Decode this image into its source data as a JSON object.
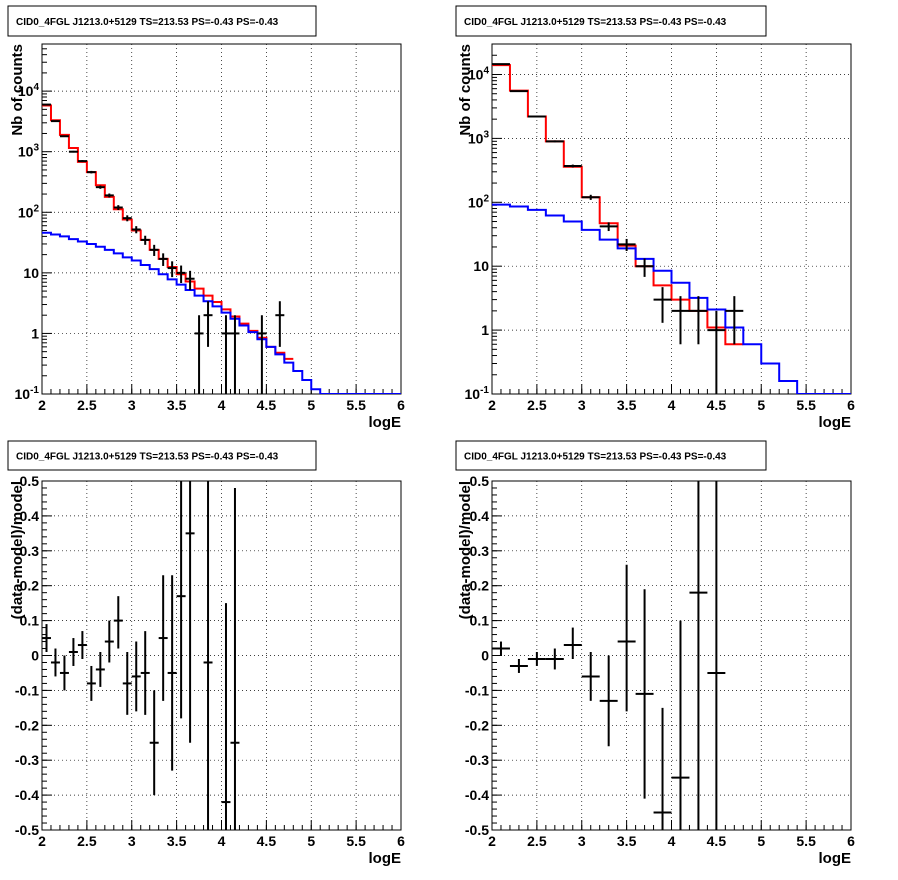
{
  "colors": {
    "total_model": "#ff0000",
    "background_model": "#0000ff",
    "data": "#000000",
    "grid": "#000000"
  },
  "chart_data": [
    {
      "type": "line",
      "title": "CID0_4FGL J1213.0+5129 TS=213.53 PS=-0.43 PS=-0.43",
      "xlabel": "logE",
      "ylabel": "Nb of counts",
      "xlim": [
        2,
        6
      ],
      "ylim": [
        0.1,
        60000
      ],
      "yscale": "log",
      "grid": true,
      "x_ticks": [
        "2",
        "2.5",
        "3",
        "3.5",
        "4",
        "4.5",
        "5",
        "5.5",
        "6"
      ],
      "y_ticks": [
        "10^-1",
        "1",
        "10",
        "10^2",
        "10^3",
        "10^4"
      ],
      "bin_width": 0.1,
      "series": [
        {
          "key": "total",
          "style": "step",
          "color": "#ff0000",
          "x": [
            2.0,
            2.1,
            2.2,
            2.3,
            2.4,
            2.5,
            2.6,
            2.7,
            2.8,
            2.9,
            3.0,
            3.1,
            3.2,
            3.3,
            3.4,
            3.5,
            3.6,
            3.7,
            3.8,
            3.9,
            4.0,
            4.1,
            4.2,
            4.3,
            4.4,
            4.5,
            4.6,
            4.7
          ],
          "values": [
            5800,
            3300,
            1900,
            1150,
            680,
            460,
            280,
            180,
            112,
            76,
            50,
            35,
            24,
            17,
            12.5,
            9.5,
            7.2,
            5.5,
            4.2,
            3.3,
            2.5,
            1.9,
            1.45,
            1.1,
            0.85,
            0.6,
            0.48,
            0.38
          ]
        },
        {
          "key": "background",
          "style": "step",
          "color": "#0000ff",
          "x": [
            2.0,
            2.1,
            2.2,
            2.3,
            2.4,
            2.5,
            2.6,
            2.7,
            2.8,
            2.9,
            3.0,
            3.1,
            3.2,
            3.3,
            3.4,
            3.5,
            3.6,
            3.7,
            3.8,
            3.9,
            4.0,
            4.1,
            4.2,
            4.3,
            4.4,
            4.5,
            4.6,
            4.7,
            4.8,
            4.9,
            5.0,
            5.1,
            5.2,
            5.3,
            5.4,
            5.5,
            5.6,
            5.7,
            5.8,
            5.9
          ],
          "values": [
            46,
            43,
            40,
            36,
            33,
            30,
            27,
            24,
            21,
            18,
            16,
            13.5,
            11.5,
            9.5,
            7.8,
            6.4,
            5.2,
            4.2,
            3.4,
            2.8,
            2.2,
            1.75,
            1.35,
            1.05,
            0.8,
            0.6,
            0.45,
            0.33,
            0.24,
            0.17,
            0.12,
            0.1,
            0.1,
            0.1,
            0.1,
            0.1,
            0.1,
            0.1,
            0.1,
            0.1
          ]
        },
        {
          "key": "data",
          "style": "errorbar",
          "color": "#000000",
          "x": [
            2.05,
            2.15,
            2.25,
            2.35,
            2.45,
            2.55,
            2.65,
            2.75,
            2.85,
            2.95,
            3.05,
            3.15,
            3.25,
            3.35,
            3.45,
            3.55,
            3.65,
            3.75,
            3.85,
            4.05,
            4.15,
            4.45,
            4.65
          ],
          "values": [
            6000,
            3200,
            1800,
            1000,
            700,
            460,
            260,
            190,
            120,
            80,
            52,
            35,
            24,
            17,
            12,
            10,
            8,
            1,
            2,
            1,
            1,
            1,
            2
          ],
          "err_low": [
            80,
            60,
            45,
            32,
            27,
            22,
            16,
            14,
            11,
            9,
            7,
            6,
            5,
            4,
            3.5,
            3.2,
            2.8,
            1,
            1.4,
            1,
            1,
            1,
            1.4
          ],
          "err_high": [
            80,
            60,
            45,
            32,
            27,
            22,
            16,
            14,
            11,
            9,
            7,
            6,
            5,
            4,
            3.5,
            3.2,
            2.8,
            1,
            1.4,
            1,
            1,
            1,
            1.4
          ]
        }
      ]
    },
    {
      "type": "line",
      "title": "CID0_4FGL J1213.0+5129 TS=213.53 PS=-0.43 PS=-0.43",
      "xlabel": "logE",
      "ylabel": "Nb of counts",
      "xlim": [
        2,
        6
      ],
      "ylim": [
        0.1,
        30000
      ],
      "yscale": "log",
      "grid": true,
      "x_ticks": [
        "2",
        "2.5",
        "3",
        "3.5",
        "4",
        "4.5",
        "5",
        "5.5",
        "6"
      ],
      "y_ticks": [
        "10^-1",
        "1",
        "10",
        "10^2",
        "10^3",
        "10^4"
      ],
      "bin_width": 0.2,
      "series": [
        {
          "key": "total",
          "style": "step",
          "color": "#ff0000",
          "x": [
            2.0,
            2.2,
            2.4,
            2.6,
            2.8,
            3.0,
            3.2,
            3.4,
            3.6,
            3.8,
            4.0,
            4.2,
            4.4,
            4.6
          ],
          "values": [
            14000,
            5600,
            2200,
            900,
            360,
            120,
            47,
            21,
            10,
            5,
            3,
            2,
            1.1,
            0.6
          ]
        },
        {
          "key": "background",
          "style": "step",
          "color": "#0000ff",
          "x": [
            2.0,
            2.2,
            2.4,
            2.6,
            2.8,
            3.0,
            3.2,
            3.4,
            3.6,
            3.8,
            4.0,
            4.2,
            4.4,
            4.6,
            4.8,
            5.0,
            5.2,
            5.4,
            5.6,
            5.8
          ],
          "values": [
            92,
            86,
            76,
            62,
            50,
            37,
            26,
            19,
            13,
            8.5,
            5.5,
            3.2,
            2.1,
            1.1,
            0.6,
            0.3,
            0.16,
            0.1,
            0.1,
            0.1
          ]
        },
        {
          "key": "data",
          "style": "errorbar",
          "color": "#000000",
          "x": [
            2.1,
            2.3,
            2.5,
            2.7,
            2.9,
            3.1,
            3.3,
            3.5,
            3.7,
            3.9,
            4.1,
            4.3,
            4.5,
            4.7
          ],
          "values": [
            14500,
            5500,
            2200,
            900,
            370,
            120,
            42,
            22,
            10,
            3,
            2,
            2,
            1,
            2
          ],
          "err_low": [
            120,
            74,
            47,
            30,
            19,
            11,
            6.5,
            4.7,
            3.2,
            1.7,
            1.4,
            1.4,
            1,
            1.4
          ],
          "err_high": [
            120,
            74,
            47,
            30,
            19,
            11,
            6.5,
            4.7,
            3.2,
            1.7,
            1.4,
            1.4,
            1,
            1.4
          ]
        }
      ]
    },
    {
      "type": "scatter",
      "title": "CID0_4FGL J1213.0+5129 TS=213.53 PS=-0.43 PS=-0.43",
      "xlabel": "logE",
      "ylabel": "(data-model)/model",
      "xlim": [
        2,
        6
      ],
      "ylim": [
        -0.5,
        0.5
      ],
      "yscale": "linear",
      "grid": true,
      "x_ticks": [
        "2",
        "2.5",
        "3",
        "3.5",
        "4",
        "4.5",
        "5",
        "5.5",
        "6"
      ],
      "y_ticks": [
        "-0.5",
        "-0.4",
        "-0.3",
        "-0.2",
        "-0.1",
        "0",
        "0.1",
        "0.2",
        "0.3",
        "0.4",
        "0.5"
      ],
      "bin_width": 0.1,
      "series": [
        {
          "key": "residual",
          "style": "errorbar",
          "color": "#000000",
          "x": [
            2.05,
            2.15,
            2.25,
            2.35,
            2.45,
            2.55,
            2.65,
            2.75,
            2.85,
            2.95,
            3.05,
            3.15,
            3.25,
            3.35,
            3.45,
            3.55,
            3.65,
            3.85,
            4.05,
            4.15
          ],
          "values": [
            0.05,
            -0.02,
            -0.05,
            0.01,
            0.03,
            -0.08,
            -0.04,
            0.04,
            0.1,
            -0.08,
            -0.06,
            -0.05,
            -0.25,
            0.05,
            -0.05,
            0.17,
            0.35,
            -0.02,
            -0.42,
            -0.25
          ],
          "err_low": [
            0.04,
            0.04,
            0.05,
            0.04,
            0.04,
            0.05,
            0.05,
            0.06,
            0.08,
            0.09,
            0.1,
            0.12,
            0.15,
            0.18,
            0.28,
            0.35,
            0.6,
            1.0,
            0.6,
            0.6
          ],
          "err_high": [
            0.04,
            0.04,
            0.05,
            0.04,
            0.04,
            0.05,
            0.05,
            0.06,
            0.07,
            0.09,
            0.1,
            0.12,
            0.15,
            0.18,
            0.28,
            0.35,
            0.6,
            1.0,
            0.57,
            0.73
          ]
        }
      ]
    },
    {
      "type": "scatter",
      "title": "CID0_4FGL J1213.0+5129 TS=213.53 PS=-0.43 PS=-0.43",
      "xlabel": "logE",
      "ylabel": "(data-model)/model",
      "xlim": [
        2,
        6
      ],
      "ylim": [
        -0.5,
        0.5
      ],
      "yscale": "linear",
      "grid": true,
      "x_ticks": [
        "2",
        "2.5",
        "3",
        "3.5",
        "4",
        "4.5",
        "5",
        "5.5",
        "6"
      ],
      "y_ticks": [
        "-0.5",
        "-0.4",
        "-0.3",
        "-0.2",
        "-0.1",
        "0",
        "0.1",
        "0.2",
        "0.3",
        "0.4",
        "0.5"
      ],
      "bin_width": 0.2,
      "series": [
        {
          "key": "residual",
          "style": "errorbar",
          "color": "#000000",
          "x": [
            2.1,
            2.3,
            2.5,
            2.7,
            2.9,
            3.1,
            3.3,
            3.5,
            3.7,
            3.9,
            4.1,
            4.3,
            4.5
          ],
          "values": [
            0.02,
            -0.03,
            -0.01,
            -0.01,
            0.03,
            -0.06,
            -0.13,
            0.04,
            -0.11,
            -0.45,
            -0.35,
            0.18,
            -0.05
          ],
          "err_low": [
            0.02,
            0.02,
            0.02,
            0.03,
            0.04,
            0.07,
            0.13,
            0.2,
            0.3,
            0.1,
            0.5,
            0.7,
            0.6
          ],
          "err_high": [
            0.02,
            0.02,
            0.02,
            0.03,
            0.05,
            0.07,
            0.13,
            0.22,
            0.3,
            0.3,
            0.45,
            0.7,
            0.6
          ]
        }
      ]
    }
  ]
}
